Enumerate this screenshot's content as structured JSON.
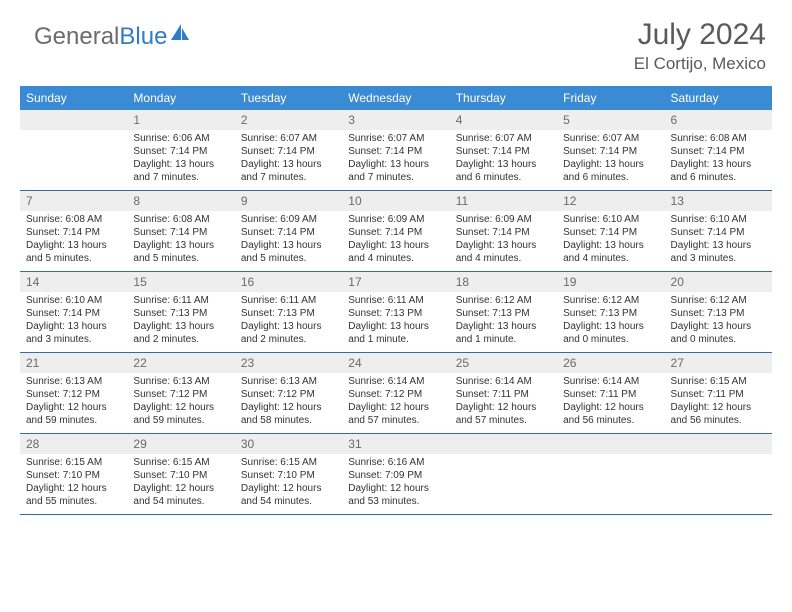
{
  "logo": {
    "text1": "General",
    "text2": "Blue"
  },
  "title": "July 2024",
  "location": "El Cortijo, Mexico",
  "header_bg": "#3b8bd4",
  "header_fg": "#ffffff",
  "row_border": "#2f6fa8",
  "daynum_bg": "#eeeeee",
  "daynum_fg": "#6a6a6a",
  "body_fg": "#333333",
  "weekdays": [
    "Sunday",
    "Monday",
    "Tuesday",
    "Wednesday",
    "Thursday",
    "Friday",
    "Saturday"
  ],
  "weeks": [
    [
      {
        "n": "",
        "sr": "",
        "ss": "",
        "d1": "",
        "d2": ""
      },
      {
        "n": "1",
        "sr": "Sunrise: 6:06 AM",
        "ss": "Sunset: 7:14 PM",
        "d1": "Daylight: 13 hours",
        "d2": "and 7 minutes."
      },
      {
        "n": "2",
        "sr": "Sunrise: 6:07 AM",
        "ss": "Sunset: 7:14 PM",
        "d1": "Daylight: 13 hours",
        "d2": "and 7 minutes."
      },
      {
        "n": "3",
        "sr": "Sunrise: 6:07 AM",
        "ss": "Sunset: 7:14 PM",
        "d1": "Daylight: 13 hours",
        "d2": "and 7 minutes."
      },
      {
        "n": "4",
        "sr": "Sunrise: 6:07 AM",
        "ss": "Sunset: 7:14 PM",
        "d1": "Daylight: 13 hours",
        "d2": "and 6 minutes."
      },
      {
        "n": "5",
        "sr": "Sunrise: 6:07 AM",
        "ss": "Sunset: 7:14 PM",
        "d1": "Daylight: 13 hours",
        "d2": "and 6 minutes."
      },
      {
        "n": "6",
        "sr": "Sunrise: 6:08 AM",
        "ss": "Sunset: 7:14 PM",
        "d1": "Daylight: 13 hours",
        "d2": "and 6 minutes."
      }
    ],
    [
      {
        "n": "7",
        "sr": "Sunrise: 6:08 AM",
        "ss": "Sunset: 7:14 PM",
        "d1": "Daylight: 13 hours",
        "d2": "and 5 minutes."
      },
      {
        "n": "8",
        "sr": "Sunrise: 6:08 AM",
        "ss": "Sunset: 7:14 PM",
        "d1": "Daylight: 13 hours",
        "d2": "and 5 minutes."
      },
      {
        "n": "9",
        "sr": "Sunrise: 6:09 AM",
        "ss": "Sunset: 7:14 PM",
        "d1": "Daylight: 13 hours",
        "d2": "and 5 minutes."
      },
      {
        "n": "10",
        "sr": "Sunrise: 6:09 AM",
        "ss": "Sunset: 7:14 PM",
        "d1": "Daylight: 13 hours",
        "d2": "and 4 minutes."
      },
      {
        "n": "11",
        "sr": "Sunrise: 6:09 AM",
        "ss": "Sunset: 7:14 PM",
        "d1": "Daylight: 13 hours",
        "d2": "and 4 minutes."
      },
      {
        "n": "12",
        "sr": "Sunrise: 6:10 AM",
        "ss": "Sunset: 7:14 PM",
        "d1": "Daylight: 13 hours",
        "d2": "and 4 minutes."
      },
      {
        "n": "13",
        "sr": "Sunrise: 6:10 AM",
        "ss": "Sunset: 7:14 PM",
        "d1": "Daylight: 13 hours",
        "d2": "and 3 minutes."
      }
    ],
    [
      {
        "n": "14",
        "sr": "Sunrise: 6:10 AM",
        "ss": "Sunset: 7:14 PM",
        "d1": "Daylight: 13 hours",
        "d2": "and 3 minutes."
      },
      {
        "n": "15",
        "sr": "Sunrise: 6:11 AM",
        "ss": "Sunset: 7:13 PM",
        "d1": "Daylight: 13 hours",
        "d2": "and 2 minutes."
      },
      {
        "n": "16",
        "sr": "Sunrise: 6:11 AM",
        "ss": "Sunset: 7:13 PM",
        "d1": "Daylight: 13 hours",
        "d2": "and 2 minutes."
      },
      {
        "n": "17",
        "sr": "Sunrise: 6:11 AM",
        "ss": "Sunset: 7:13 PM",
        "d1": "Daylight: 13 hours",
        "d2": "and 1 minute."
      },
      {
        "n": "18",
        "sr": "Sunrise: 6:12 AM",
        "ss": "Sunset: 7:13 PM",
        "d1": "Daylight: 13 hours",
        "d2": "and 1 minute."
      },
      {
        "n": "19",
        "sr": "Sunrise: 6:12 AM",
        "ss": "Sunset: 7:13 PM",
        "d1": "Daylight: 13 hours",
        "d2": "and 0 minutes."
      },
      {
        "n": "20",
        "sr": "Sunrise: 6:12 AM",
        "ss": "Sunset: 7:13 PM",
        "d1": "Daylight: 13 hours",
        "d2": "and 0 minutes."
      }
    ],
    [
      {
        "n": "21",
        "sr": "Sunrise: 6:13 AM",
        "ss": "Sunset: 7:12 PM",
        "d1": "Daylight: 12 hours",
        "d2": "and 59 minutes."
      },
      {
        "n": "22",
        "sr": "Sunrise: 6:13 AM",
        "ss": "Sunset: 7:12 PM",
        "d1": "Daylight: 12 hours",
        "d2": "and 59 minutes."
      },
      {
        "n": "23",
        "sr": "Sunrise: 6:13 AM",
        "ss": "Sunset: 7:12 PM",
        "d1": "Daylight: 12 hours",
        "d2": "and 58 minutes."
      },
      {
        "n": "24",
        "sr": "Sunrise: 6:14 AM",
        "ss": "Sunset: 7:12 PM",
        "d1": "Daylight: 12 hours",
        "d2": "and 57 minutes."
      },
      {
        "n": "25",
        "sr": "Sunrise: 6:14 AM",
        "ss": "Sunset: 7:11 PM",
        "d1": "Daylight: 12 hours",
        "d2": "and 57 minutes."
      },
      {
        "n": "26",
        "sr": "Sunrise: 6:14 AM",
        "ss": "Sunset: 7:11 PM",
        "d1": "Daylight: 12 hours",
        "d2": "and 56 minutes."
      },
      {
        "n": "27",
        "sr": "Sunrise: 6:15 AM",
        "ss": "Sunset: 7:11 PM",
        "d1": "Daylight: 12 hours",
        "d2": "and 56 minutes."
      }
    ],
    [
      {
        "n": "28",
        "sr": "Sunrise: 6:15 AM",
        "ss": "Sunset: 7:10 PM",
        "d1": "Daylight: 12 hours",
        "d2": "and 55 minutes."
      },
      {
        "n": "29",
        "sr": "Sunrise: 6:15 AM",
        "ss": "Sunset: 7:10 PM",
        "d1": "Daylight: 12 hours",
        "d2": "and 54 minutes."
      },
      {
        "n": "30",
        "sr": "Sunrise: 6:15 AM",
        "ss": "Sunset: 7:10 PM",
        "d1": "Daylight: 12 hours",
        "d2": "and 54 minutes."
      },
      {
        "n": "31",
        "sr": "Sunrise: 6:16 AM",
        "ss": "Sunset: 7:09 PM",
        "d1": "Daylight: 12 hours",
        "d2": "and 53 minutes."
      },
      {
        "n": "",
        "sr": "",
        "ss": "",
        "d1": "",
        "d2": ""
      },
      {
        "n": "",
        "sr": "",
        "ss": "",
        "d1": "",
        "d2": ""
      },
      {
        "n": "",
        "sr": "",
        "ss": "",
        "d1": "",
        "d2": ""
      }
    ]
  ]
}
